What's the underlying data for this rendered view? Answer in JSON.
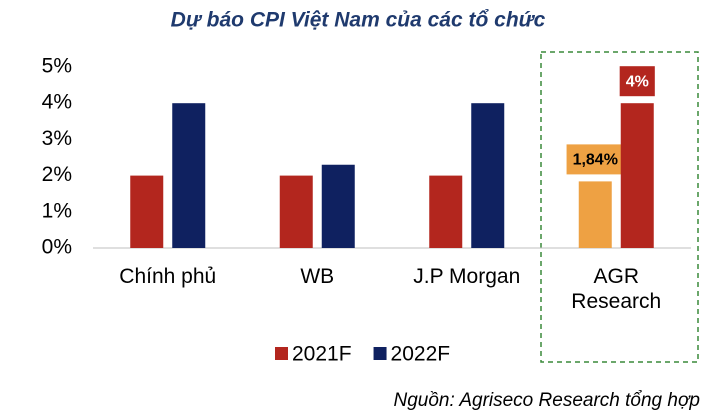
{
  "chart_data": {
    "type": "bar",
    "title": "Dự báo CPI Việt Nam của các tổ chức",
    "categories": [
      "Chính phủ",
      "WB",
      "J.P Morgan",
      "AGR Research"
    ],
    "series": [
      {
        "name": "2021F",
        "color": "#b3261e",
        "colors": [
          "#b3261e",
          "#b3261e",
          "#b3261e",
          "#eea143"
        ],
        "values": [
          2,
          2,
          2,
          1.84
        ],
        "value_labels": [
          null,
          null,
          null,
          "1,84%"
        ]
      },
      {
        "name": "2022F",
        "color": "#0f2160",
        "colors": [
          "#0f2160",
          "#0f2160",
          "#0f2160",
          "#b3261e"
        ],
        "values": [
          4,
          2.3,
          4,
          4
        ],
        "value_labels": [
          null,
          null,
          null,
          "4%"
        ]
      }
    ],
    "ylim": [
      0,
      5
    ],
    "yticks": [
      {
        "value": 0,
        "label": "0%"
      },
      {
        "value": 1,
        "label": "1%"
      },
      {
        "value": 2,
        "label": "2%"
      },
      {
        "value": 3,
        "label": "3%"
      },
      {
        "value": 4,
        "label": "4%"
      },
      {
        "value": 5,
        "label": "5%"
      }
    ],
    "grid": false,
    "source": "Nguồn: Agriseco Research tổng hợp"
  }
}
